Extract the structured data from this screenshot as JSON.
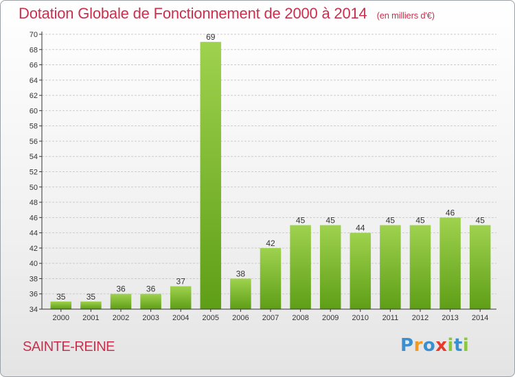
{
  "header": {
    "title": "Dotation Globale de Fonctionnement de 2000 à 2014",
    "unit_note": "(en milliers d'€)"
  },
  "footer": {
    "commune": "SAINTE-REINE",
    "logo_letters": [
      "P",
      "r",
      "o",
      "x",
      "i",
      "t",
      "i"
    ],
    "logo_colors": [
      "#3a8fd0",
      "#f39a1e",
      "#3a8fd0",
      "#e8392b",
      "#8cc63e",
      "#3a8fd0",
      "#8cc63e"
    ]
  },
  "colors": {
    "title": "#c8304e",
    "bar_light": "#9fd24e",
    "bar_dark": "#5e9e16",
    "grid": "#cccccc",
    "axis": "#333333"
  },
  "chart_data": {
    "type": "bar",
    "title": "Dotation Globale de Fonctionnement de 2000 à 2014",
    "ylabel": "en milliers d'€",
    "xlabel": "",
    "categories": [
      "2000",
      "2001",
      "2002",
      "2003",
      "2004",
      "2005",
      "2006",
      "2007",
      "2008",
      "2009",
      "2010",
      "2011",
      "2012",
      "2013",
      "2014"
    ],
    "values": [
      35,
      35,
      36,
      36,
      37,
      69,
      38,
      42,
      45,
      45,
      44,
      45,
      45,
      46,
      45
    ],
    "ylim": [
      34,
      70
    ],
    "ytick_step": 2,
    "grid": true
  }
}
